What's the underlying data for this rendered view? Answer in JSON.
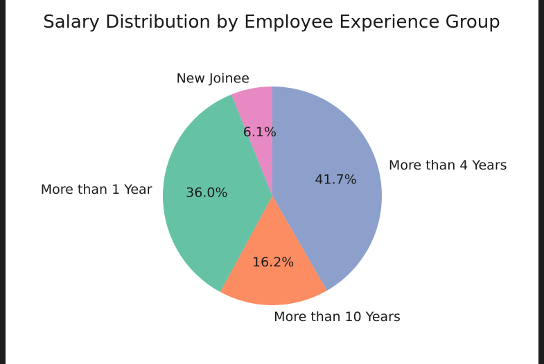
{
  "chart_data": {
    "type": "pie",
    "title": "Salary Distribution by Employee Experience Group",
    "start_angle_deg": 90,
    "direction": "clockwise",
    "slices": [
      {
        "label": "More than 4 Years",
        "value": 41.7,
        "pct_text": "41.7%",
        "color": "#8da0cb"
      },
      {
        "label": "More than 10 Years",
        "value": 16.2,
        "pct_text": "16.2%",
        "color": "#fc8d62"
      },
      {
        "label": "More than 1 Year",
        "value": 36.0,
        "pct_text": "36.0%",
        "color": "#66c2a5"
      },
      {
        "label": "New Joinee",
        "value": 6.1,
        "pct_text": "6.1%",
        "color": "#e78ac3"
      }
    ]
  }
}
